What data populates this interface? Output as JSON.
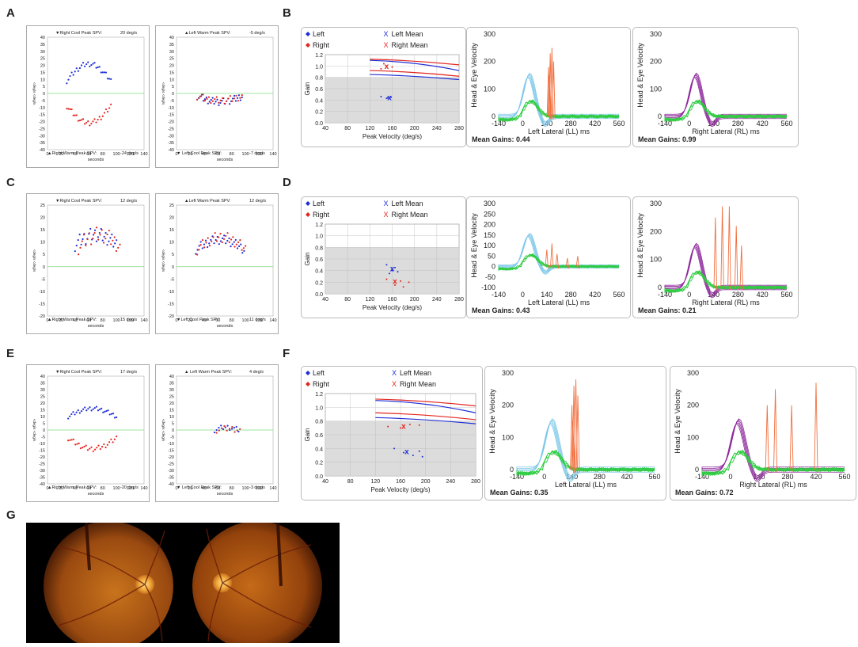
{
  "labels": [
    "A",
    "B",
    "C",
    "D",
    "E",
    "F",
    "G"
  ],
  "caloric": {
    "y_ticks": [
      40,
      35,
      30,
      25,
      20,
      15,
      10,
      5,
      0,
      -5,
      -10,
      -15,
      -20,
      -25,
      -30,
      -35,
      -40
    ],
    "y_ticks_c": [
      25,
      20,
      15,
      10,
      5,
      0,
      -5,
      -10,
      -15,
      -20
    ],
    "x_ticks": [
      0,
      20,
      40,
      60,
      80,
      100,
      120,
      140
    ],
    "x_label": "seconds",
    "y_label": "<deg/s  <deg/s",
    "A_left": {
      "top": "▼Right Cool Peak SPV:",
      "top_val": "20  deg/s",
      "bottom": "▲Right Warm Peak SPV:",
      "bottom_val": "-24  deg/s"
    },
    "A_right": {
      "top": "▲Left Warm Peak SPV:",
      "top_val": "-5  deg/s",
      "bottom": "▼ Left Cool Peak SPV:",
      "bottom_val": "-7  deg/s"
    },
    "C_left": {
      "top": "▼Right Cool Peak SPV:",
      "top_val": "12  deg/s",
      "bottom": "▲Right Warm Peak SPV:",
      "bottom_val": "15  deg/s"
    },
    "C_right": {
      "top": "▲Left Warm Peak SPV:",
      "top_val": "12  deg/s",
      "bottom": "▼Left Cool Peak SPV:",
      "bottom_val": "11  deg/s"
    },
    "E_left": {
      "top": "▼Right Cool Peak SPV:",
      "top_val": "17  deg/s",
      "bottom": "▲Right Warm Peak SPV:",
      "bottom_val": "-20  deg/s"
    },
    "E_right": {
      "top": "▲ Left Warm Peak SPV:",
      "top_val": "4  deg/s",
      "bottom": "▼ Left Cool Peak SPV:",
      "bottom_val": "-3  deg/s"
    }
  },
  "legend": {
    "left": "Left",
    "right": "Right",
    "left_mean": "Left Mean",
    "right_mean": "Right Mean"
  },
  "gain_plot": {
    "y_label": "Gain",
    "x_label": "Peak Velocity (deg/s)",
    "y_ticks": [
      "1.2",
      "1.0",
      "0.8",
      "0.6",
      "0.4",
      "0.2",
      "0.0"
    ],
    "x_ticks": [
      "40",
      "80",
      "120",
      "160",
      "200",
      "240",
      "280"
    ]
  },
  "velocity_plot": {
    "y_label": "Head & Eye Velocity",
    "y_ticks": [
      "300",
      "200",
      "100",
      "0"
    ],
    "y_ticks_neg": [
      "300",
      "250",
      "200",
      "150",
      "100",
      "50",
      "0",
      "-50",
      "-100"
    ],
    "x_ticks": [
      "-140",
      "0",
      "140",
      "280",
      "420",
      "560"
    ],
    "left_x_label": "Left Lateral (LL) ms",
    "right_x_label": "Right Lateral (RL) ms"
  },
  "gains": {
    "B_left": "Mean Gains: 0.44",
    "B_right": "Mean Gains: 0.99",
    "D_left": "Mean Gains: 0.43",
    "D_right": "Mean Gains: 0.21",
    "F_left": "Mean Gains: 0.35",
    "F_right": "Mean Gains: 0.72"
  },
  "colors": {
    "left": "#1f2fd6",
    "right": "#e3261f",
    "baseline": "#7fdc7f",
    "head": "#2ecc40",
    "eye_left": "#7ec8e8",
    "eye_right": "#8e2a9c",
    "saccade": "#f07040"
  }
}
